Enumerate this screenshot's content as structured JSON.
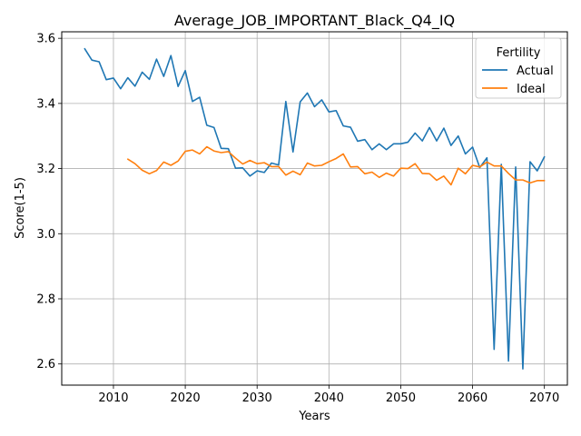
{
  "chart_data": {
    "type": "line",
    "title": "Average_JOB_IMPORTANT_Black_Q4_IQ",
    "xlabel": "Years",
    "ylabel": "Score(1-5)",
    "xlim": [
      2002.8,
      2073.2
    ],
    "ylim": [
      2.535,
      3.62
    ],
    "xticks": [
      2010,
      2020,
      2030,
      2040,
      2050,
      2060,
      2070
    ],
    "yticks": [
      2.6,
      2.8,
      3.0,
      3.2,
      3.4,
      3.6
    ],
    "ytick_labels": [
      "2.6",
      "2.8",
      "3.0",
      "3.2",
      "3.4",
      "3.6"
    ],
    "grid": true,
    "legend": {
      "title": "Fertility",
      "placement": "top-right"
    },
    "series": [
      {
        "name": "Actual",
        "color": "#1f77b4",
        "x": [
          2006,
          2007,
          2008,
          2009,
          2010,
          2011,
          2012,
          2013,
          2014,
          2015,
          2016,
          2017,
          2018,
          2019,
          2020,
          2021,
          2022,
          2023,
          2024,
          2025,
          2026,
          2027,
          2028,
          2029,
          2030,
          2031,
          2032,
          2033,
          2034,
          2035,
          2036,
          2037,
          2038,
          2039,
          2040,
          2041,
          2042,
          2043,
          2044,
          2045,
          2046,
          2047,
          2048,
          2049,
          2050,
          2051,
          2052,
          2053,
          2054,
          2055,
          2056,
          2057,
          2058,
          2059,
          2060,
          2061,
          2062,
          2063,
          2064,
          2065,
          2066,
          2067,
          2068,
          2069,
          2070
        ],
        "values": [
          3.568,
          3.533,
          3.528,
          3.473,
          3.478,
          3.445,
          3.479,
          3.453,
          3.496,
          3.474,
          3.536,
          3.483,
          3.547,
          3.452,
          3.501,
          3.406,
          3.419,
          3.333,
          3.326,
          3.262,
          3.261,
          3.201,
          3.202,
          3.177,
          3.193,
          3.188,
          3.217,
          3.211,
          3.406,
          3.251,
          3.405,
          3.432,
          3.39,
          3.411,
          3.374,
          3.378,
          3.331,
          3.327,
          3.284,
          3.289,
          3.258,
          3.276,
          3.258,
          3.276,
          3.276,
          3.281,
          3.309,
          3.285,
          3.326,
          3.285,
          3.324,
          3.271,
          3.3,
          3.245,
          3.266,
          3.203,
          3.233,
          2.645,
          3.213,
          2.609,
          3.205,
          2.585,
          3.221,
          3.193,
          3.236
        ]
      },
      {
        "name": "Ideal",
        "color": "#ff7f0e",
        "x": [
          2012,
          2013,
          2014,
          2015,
          2016,
          2017,
          2018,
          2019,
          2020,
          2021,
          2022,
          2023,
          2024,
          2025,
          2026,
          2027,
          2028,
          2029,
          2030,
          2031,
          2032,
          2033,
          2034,
          2035,
          2036,
          2037,
          2038,
          2039,
          2040,
          2041,
          2042,
          2043,
          2044,
          2045,
          2046,
          2047,
          2048,
          2049,
          2050,
          2051,
          2052,
          2053,
          2054,
          2055,
          2056,
          2057,
          2058,
          2059,
          2060,
          2061,
          2062,
          2063,
          2064,
          2065,
          2066,
          2067,
          2068,
          2069,
          2070
        ],
        "values": [
          3.229,
          3.215,
          3.195,
          3.184,
          3.194,
          3.22,
          3.21,
          3.223,
          3.253,
          3.257,
          3.245,
          3.267,
          3.254,
          3.249,
          3.252,
          3.232,
          3.214,
          3.225,
          3.215,
          3.218,
          3.206,
          3.206,
          3.18,
          3.192,
          3.181,
          3.217,
          3.208,
          3.21,
          3.221,
          3.231,
          3.245,
          3.205,
          3.206,
          3.184,
          3.189,
          3.173,
          3.186,
          3.177,
          3.201,
          3.2,
          3.215,
          3.185,
          3.184,
          3.164,
          3.177,
          3.15,
          3.201,
          3.184,
          3.21,
          3.205,
          3.22,
          3.208,
          3.208,
          3.185,
          3.165,
          3.165,
          3.156,
          3.163,
          3.163
        ]
      }
    ]
  }
}
